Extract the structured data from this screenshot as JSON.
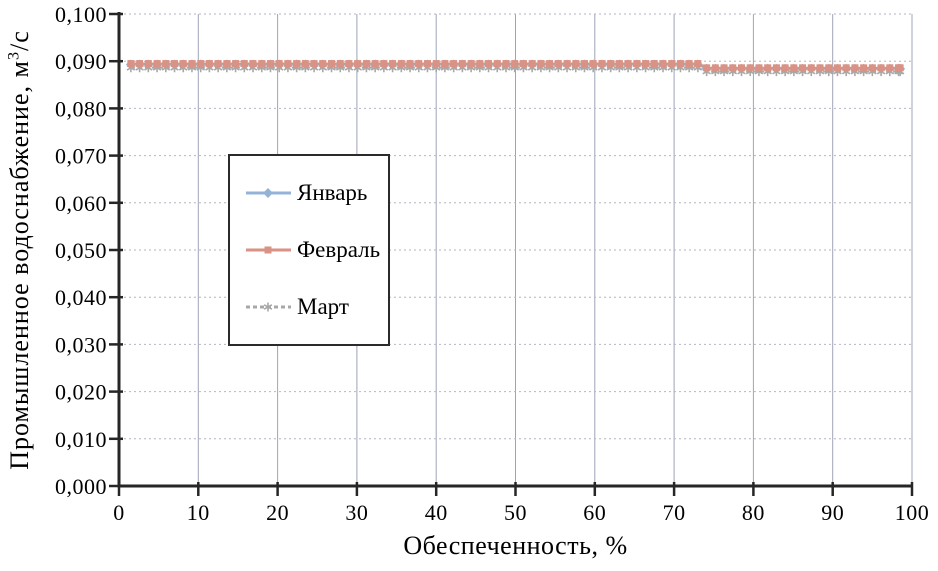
{
  "theme": {
    "background": "#ffffff",
    "axis_color": "#262626",
    "grid_vertical_color": "#9ea4b8",
    "grid_horizontal_color": "#b2b6c4",
    "text_color": "#000000",
    "legend_border_color": "#2b2b2b"
  },
  "chart_data": {
    "type": "line",
    "title": "",
    "xlabel": "Обеспеченность, %",
    "ylabel": "Промышленное водоснабжение, м3/с",
    "ylabel_prefix": "Промышленное водоснабжение, м",
    "ylabel_sup": "3",
    "ylabel_suffix": "/с",
    "xlim": [
      0,
      100
    ],
    "ylim": [
      0,
      0.1
    ],
    "x_ticks": [
      0,
      10,
      20,
      30,
      40,
      50,
      60,
      70,
      80,
      90,
      100
    ],
    "x_tick_labels": [
      "0",
      "10",
      "20",
      "30",
      "40",
      "50",
      "60",
      "70",
      "80",
      "90",
      "100"
    ],
    "y_ticks": [
      0,
      0.01,
      0.02,
      0.03,
      0.04,
      0.05,
      0.06,
      0.07,
      0.08,
      0.09,
      0.1
    ],
    "y_tick_labels": [
      "0,000",
      "0,010",
      "0,020",
      "0,030",
      "0,040",
      "0,050",
      "0,060",
      "0,070",
      "0,080",
      "0,090",
      "0,100"
    ],
    "grid": true,
    "legend_position": "inside-left",
    "marker_start_x": 1.5,
    "marker_end_x": 98.6,
    "marker_step_x": 1.1,
    "draw_order": [
      0,
      2,
      1
    ],
    "series": [
      {
        "name": "Январь",
        "color": "#95b3d7",
        "marker": "diamond",
        "line": "solid",
        "segments": [
          {
            "x_from": 1.5,
            "x_to": 73.6,
            "y": 0.0893
          },
          {
            "x_from": 73.6,
            "x_to": 98.6,
            "y": 0.0884
          }
        ]
      },
      {
        "name": "Февраль",
        "color": "#d99284",
        "marker": "square",
        "line": "solid",
        "segments": [
          {
            "x_from": 1.5,
            "x_to": 73.6,
            "y": 0.0895
          },
          {
            "x_from": 73.6,
            "x_to": 98.6,
            "y": 0.0886
          }
        ]
      },
      {
        "name": "Март",
        "color": "#a8a8a8",
        "marker": "star",
        "line": "dashed",
        "segments": [
          {
            "x_from": 1.5,
            "x_to": 73.6,
            "y": 0.0886
          },
          {
            "x_from": 73.6,
            "x_to": 98.6,
            "y": 0.0878
          }
        ]
      }
    ]
  }
}
